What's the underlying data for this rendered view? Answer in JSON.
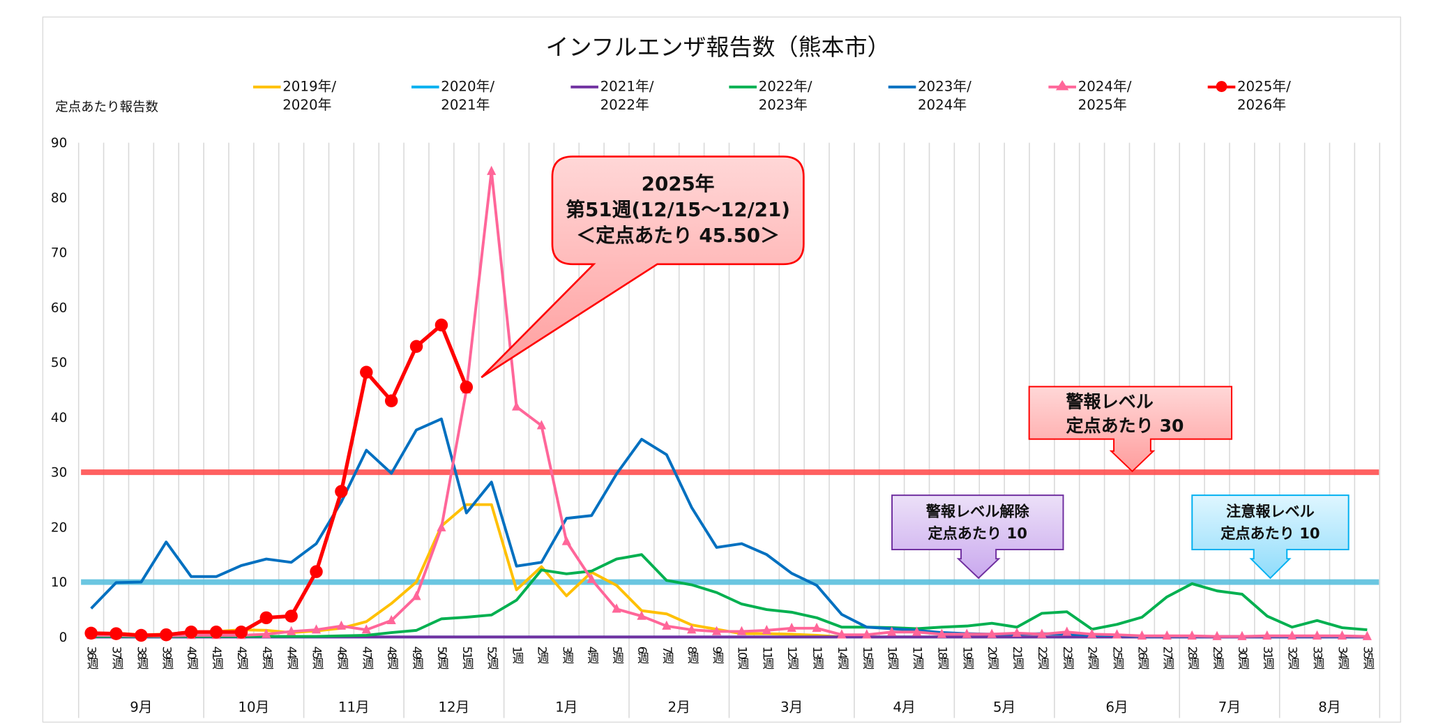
{
  "title": "インフルエンザ報告数（熊本市）",
  "chart_data": {
    "type": "line",
    "title": "インフルエンザ報告数（熊本市）",
    "ylabel": "定点あたり報告数",
    "ylim": [
      0,
      90
    ],
    "yticks": [
      "0",
      "10",
      "20",
      "30",
      "40",
      "50",
      "60",
      "70",
      "80",
      "90"
    ],
    "grid": "vertical",
    "legend": "top",
    "categories": [
      "36週",
      "37週",
      "38週",
      "39週",
      "40週",
      "41週",
      "42週",
      "43週",
      "44週",
      "45週",
      "46週",
      "47週",
      "48週",
      "49週",
      "50週",
      "51週",
      "52週",
      "1週",
      "2週",
      "3週",
      "4週",
      "5週",
      "6週",
      "7週",
      "8週",
      "9週",
      "10週",
      "11週",
      "12週",
      "13週",
      "14週",
      "15週",
      "16週",
      "17週",
      "18週",
      "19週",
      "20週",
      "21週",
      "22週",
      "23週",
      "24週",
      "25週",
      "26週",
      "27週",
      "28週",
      "29週",
      "30週",
      "31週",
      "32週",
      "33週",
      "34週",
      "35週"
    ],
    "months": [
      {
        "label": "9月",
        "weeks": 5
      },
      {
        "label": "10月",
        "weeks": 4
      },
      {
        "label": "11月",
        "weeks": 4
      },
      {
        "label": "12月",
        "weeks": 4
      },
      {
        "label": "1月",
        "weeks": 5
      },
      {
        "label": "2月",
        "weeks": 4
      },
      {
        "label": "3月",
        "weeks": 5
      },
      {
        "label": "4月",
        "weeks": 4
      },
      {
        "label": "5月",
        "weeks": 4
      },
      {
        "label": "6月",
        "weeks": 5
      },
      {
        "label": "7月",
        "weeks": 4
      },
      {
        "label": "8月",
        "weeks": 4
      }
    ],
    "series": [
      {
        "name": "2019年/2020年",
        "color": "#ffc000",
        "marker": "none",
        "values": [
          0.6,
          0.7,
          0.4,
          0.5,
          0.8,
          1.0,
          1.3,
          1.2,
          0.8,
          1.1,
          1.6,
          2.8,
          6.1,
          10.0,
          20.2,
          24.1,
          24.1,
          8.6,
          12.8,
          7.5,
          11.8,
          9.4,
          4.8,
          4.2,
          2.2,
          1.4,
          0.6,
          0.6,
          0.5,
          0.3,
          0,
          0,
          0,
          0,
          0,
          0,
          0,
          0,
          0,
          0,
          0,
          0,
          0,
          0,
          0,
          0,
          0,
          0,
          0,
          0,
          0,
          0
        ]
      },
      {
        "name": "2020年/2021年",
        "color": "#00b0f0",
        "marker": "none",
        "values": [
          0,
          0,
          0,
          0,
          0,
          0,
          0,
          0,
          0,
          0,
          0,
          0,
          0,
          0,
          0,
          0,
          0,
          0,
          0,
          0,
          0,
          0,
          0,
          0,
          0,
          0,
          0,
          0,
          0,
          0,
          0,
          0,
          0,
          0,
          0,
          0,
          0,
          0,
          0,
          0,
          0,
          0,
          0,
          0,
          0,
          0,
          0,
          0,
          0,
          0,
          0,
          0
        ]
      },
      {
        "name": "2021年/2022年",
        "color": "#7030a0",
        "marker": "none",
        "values": [
          0,
          0,
          0,
          0,
          0,
          0,
          0,
          0,
          0,
          0,
          0,
          0,
          0,
          0,
          0,
          0,
          0,
          0,
          0,
          0,
          0,
          0,
          0,
          0,
          0,
          0,
          0,
          0,
          0,
          0,
          0,
          0,
          0,
          0,
          0,
          0,
          0,
          0,
          0,
          0,
          0,
          0,
          0,
          0,
          0,
          0,
          0,
          0,
          0,
          0,
          0,
          0
        ]
      },
      {
        "name": "2022年/2023年",
        "color": "#00b050",
        "marker": "none",
        "values": [
          0.1,
          0.1,
          0.1,
          0.1,
          0.1,
          0.1,
          0.1,
          0.1,
          0.1,
          0.1,
          0.2,
          0.3,
          0.8,
          1.2,
          3.3,
          3.6,
          4.0,
          6.7,
          12.2,
          11.5,
          12.0,
          14.2,
          15.0,
          10.3,
          9.5,
          8.1,
          6.0,
          5.0,
          4.5,
          3.5,
          1.8,
          1.8,
          1.7,
          1.5,
          1.8,
          2.0,
          2.5,
          1.8,
          4.3,
          4.6,
          1.4,
          2.3,
          3.6,
          7.3,
          9.7,
          8.4,
          7.8,
          3.8,
          1.8,
          3.0,
          1.7,
          1.3
        ]
      },
      {
        "name": "2023年/2024年",
        "color": "#0070c0",
        "marker": "none",
        "values": [
          5.2,
          9.9,
          10.0,
          17.3,
          11.0,
          11.0,
          13.0,
          14.2,
          13.6,
          17.0,
          24.6,
          34.0,
          29.8,
          37.7,
          39.7,
          22.6,
          28.2,
          12.9,
          13.6,
          21.6,
          22.1,
          29.7,
          36.0,
          33.2,
          23.6,
          16.3,
          17.0,
          15.0,
          11.6,
          9.4,
          4.1,
          1.8,
          1.5,
          1.2,
          0.8,
          0.6,
          0.5,
          0.5,
          0.6,
          0.5,
          0.3,
          0.3,
          0.1,
          0.1,
          0.1,
          0.1,
          0.1,
          0.1,
          0.1,
          0.1,
          0.1,
          0.1
        ]
      },
      {
        "name": "2024年/2025年",
        "color": "#ff6699",
        "marker": "triangle",
        "values": [
          0.3,
          0.3,
          0.2,
          0.2,
          0.3,
          0.3,
          0.3,
          0.5,
          1.0,
          1.3,
          2.0,
          1.3,
          3.0,
          7.4,
          19.9,
          45.0,
          84.8,
          41.9,
          38.5,
          17.4,
          10.5,
          5.1,
          3.8,
          2.0,
          1.3,
          1.0,
          1.0,
          1.2,
          1.6,
          1.6,
          0.4,
          0.4,
          0.9,
          0.9,
          0.5,
          0.5,
          0.5,
          0.7,
          0.5,
          0.9,
          0.5,
          0.4,
          0.2,
          0.2,
          0.2,
          0.1,
          0.1,
          0.2,
          0.2,
          0.2,
          0.2,
          0.1
        ]
      },
      {
        "name": "2025年/2026年",
        "color": "#ff0000",
        "marker": "circle",
        "values": [
          0.7,
          0.6,
          0.3,
          0.4,
          0.9,
          0.9,
          0.9,
          3.5,
          3.8,
          11.9,
          26.5,
          48.2,
          43.0,
          52.9,
          56.8,
          45.5,
          null,
          null,
          null,
          null,
          null,
          null,
          null,
          null,
          null,
          null,
          null,
          null,
          null,
          null,
          null,
          null,
          null,
          null,
          null,
          null,
          null,
          null,
          null,
          null,
          null,
          null,
          null,
          null,
          null,
          null,
          null,
          null,
          null,
          null,
          null,
          null
        ]
      }
    ],
    "reference_lines": [
      {
        "value": 30,
        "color": "#ff5050"
      },
      {
        "value": 10,
        "color": "#5bc0de"
      }
    ]
  },
  "legend": [
    {
      "line1": "2019年/",
      "line2": "2020年"
    },
    {
      "line1": "2020年/",
      "line2": "2021年"
    },
    {
      "line1": "2021年/",
      "line2": "2022年"
    },
    {
      "line1": "2022年/",
      "line2": "2023年"
    },
    {
      "line1": "2023年/",
      "line2": "2024年"
    },
    {
      "line1": "2024年/",
      "line2": "2025年"
    },
    {
      "line1": "2025年/",
      "line2": "2026年"
    }
  ],
  "callouts": {
    "current": {
      "line1": "2025年",
      "line2": "第51週(12/15～12/21)",
      "line3": "＜定点あたり  45.50＞"
    },
    "alert": {
      "line1": "警報レベル",
      "line2": "定点あたり 30"
    },
    "alert_end": {
      "line1": "警報レベル解除",
      "line2": "定点あたり  10"
    },
    "warning": {
      "line1": "注意報レベル",
      "line2": "定点あたり 10"
    }
  }
}
